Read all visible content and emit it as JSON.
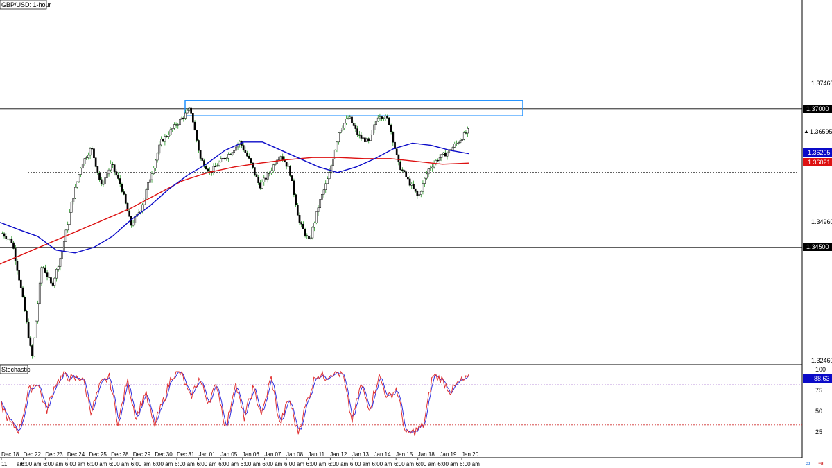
{
  "colors": {
    "background": "#ffffff",
    "candle": "#000000",
    "up_wick": "#0b8a0b",
    "ma_fast": "#0a0ac8",
    "ma_slow": "#dd1111",
    "resistance_box": "#1e90ff",
    "stoch_main": "#e03030",
    "stoch_signal": "#3030e0",
    "level_100": "#7b2fbe",
    "level_20": "#d03030",
    "badge_blue": "#0a0ac8",
    "badge_red": "#dd1111",
    "badge_black": "#000000"
  },
  "chart_data": [
    {
      "type": "candlestick",
      "title": "GBP/USD: 1-hour",
      "y_axis_ticks": [
        "1.37460",
        "1.34960",
        "1.32460"
      ],
      "ylim": [
        1.322,
        1.382
      ],
      "grid": false,
      "x_labels": [
        "Dec 18",
        "Dec 22",
        "Dec 23",
        "Dec 24",
        "Dec 25",
        "Dec 28",
        "Dec 29",
        "Dec 30",
        "Dec 31",
        "Jan 01",
        "Jan 05",
        "Jan 06",
        "Jan 07",
        "Jan 08",
        "Jan 11",
        "Jan 12",
        "Jan 13",
        "Jan 14",
        "Jan 15",
        "Jan 18",
        "Jan 19",
        "Jan 20"
      ],
      "x_sublabel": "6:00 am",
      "first_x_sublabel": "11:",
      "first_x_sublabel_suffix": "am",
      "price_closes": [
        1.3475,
        1.346,
        1.3365,
        1.325,
        1.342,
        1.338,
        1.344,
        1.353,
        1.36,
        1.363,
        1.356,
        1.36,
        1.356,
        1.349,
        1.352,
        1.358,
        1.364,
        1.366,
        1.368,
        1.37,
        1.361,
        1.3585,
        1.3605,
        1.362,
        1.364,
        1.3605,
        1.356,
        1.3585,
        1.362,
        1.359,
        1.3495,
        1.346,
        1.353,
        1.358,
        1.366,
        1.3685,
        1.365,
        1.364,
        1.369,
        1.368,
        1.36,
        1.357,
        1.354,
        1.359,
        1.361,
        1.3622,
        1.364,
        1.366
      ],
      "ma_fast": [
        1.3495,
        1.3482,
        1.347,
        1.3445,
        1.344,
        1.345,
        1.347,
        1.35,
        1.3525,
        1.3555,
        1.358,
        1.36,
        1.3625,
        1.364,
        1.364,
        1.3625,
        1.361,
        1.3595,
        1.3585,
        1.3595,
        1.361,
        1.3628,
        1.3638,
        1.3634,
        1.3625,
        1.3619
      ],
      "ma_slow": [
        1.342,
        1.344,
        1.346,
        1.348,
        1.35,
        1.352,
        1.3545,
        1.357,
        1.3585,
        1.3595,
        1.3602,
        1.3608,
        1.3612,
        1.3612,
        1.361,
        1.361,
        1.3605,
        1.36,
        1.3602
      ],
      "levels": [
        {
          "value": 1.37,
          "label": "1.37000",
          "style": "solid",
          "badge": "black"
        },
        {
          "value": 1.36595,
          "label": "1.36595",
          "style": "none",
          "badge": "black-arrow"
        },
        {
          "value": 1.36205,
          "label": "1.36205",
          "style": "none",
          "badge": "blue"
        },
        {
          "value": 1.36021,
          "label": "1.36021",
          "style": "none",
          "badge": "red"
        },
        {
          "value": 1.3585,
          "label": "",
          "style": "dotted",
          "badge": "none"
        },
        {
          "value": 1.345,
          "label": "1.34500",
          "style": "solid",
          "badge": "black"
        }
      ],
      "annotation_box": {
        "y_top": 1.3715,
        "y_bottom": 1.3687
      }
    },
    {
      "type": "line",
      "title": "Stochastic",
      "ylim": [
        0,
        100
      ],
      "y_axis_ticks": [
        "100",
        "75",
        "50",
        "25"
      ],
      "levels": [
        80,
        20
      ],
      "current_value": "88.63",
      "main": [
        50,
        22,
        12,
        70,
        85,
        40,
        82,
        95,
        88,
        92,
        40,
        80,
        92,
        22,
        88,
        30,
        70,
        18,
        55,
        95,
        98,
        60,
        90,
        55,
        80,
        12,
        85,
        30,
        75,
        35,
        92,
        20,
        60,
        8,
        55,
        96,
        92,
        100,
        95,
        25,
        80,
        45,
        94,
        60,
        75,
        5,
        10,
        20,
        95,
        88,
        70,
        85,
        89
      ]
    }
  ]
}
